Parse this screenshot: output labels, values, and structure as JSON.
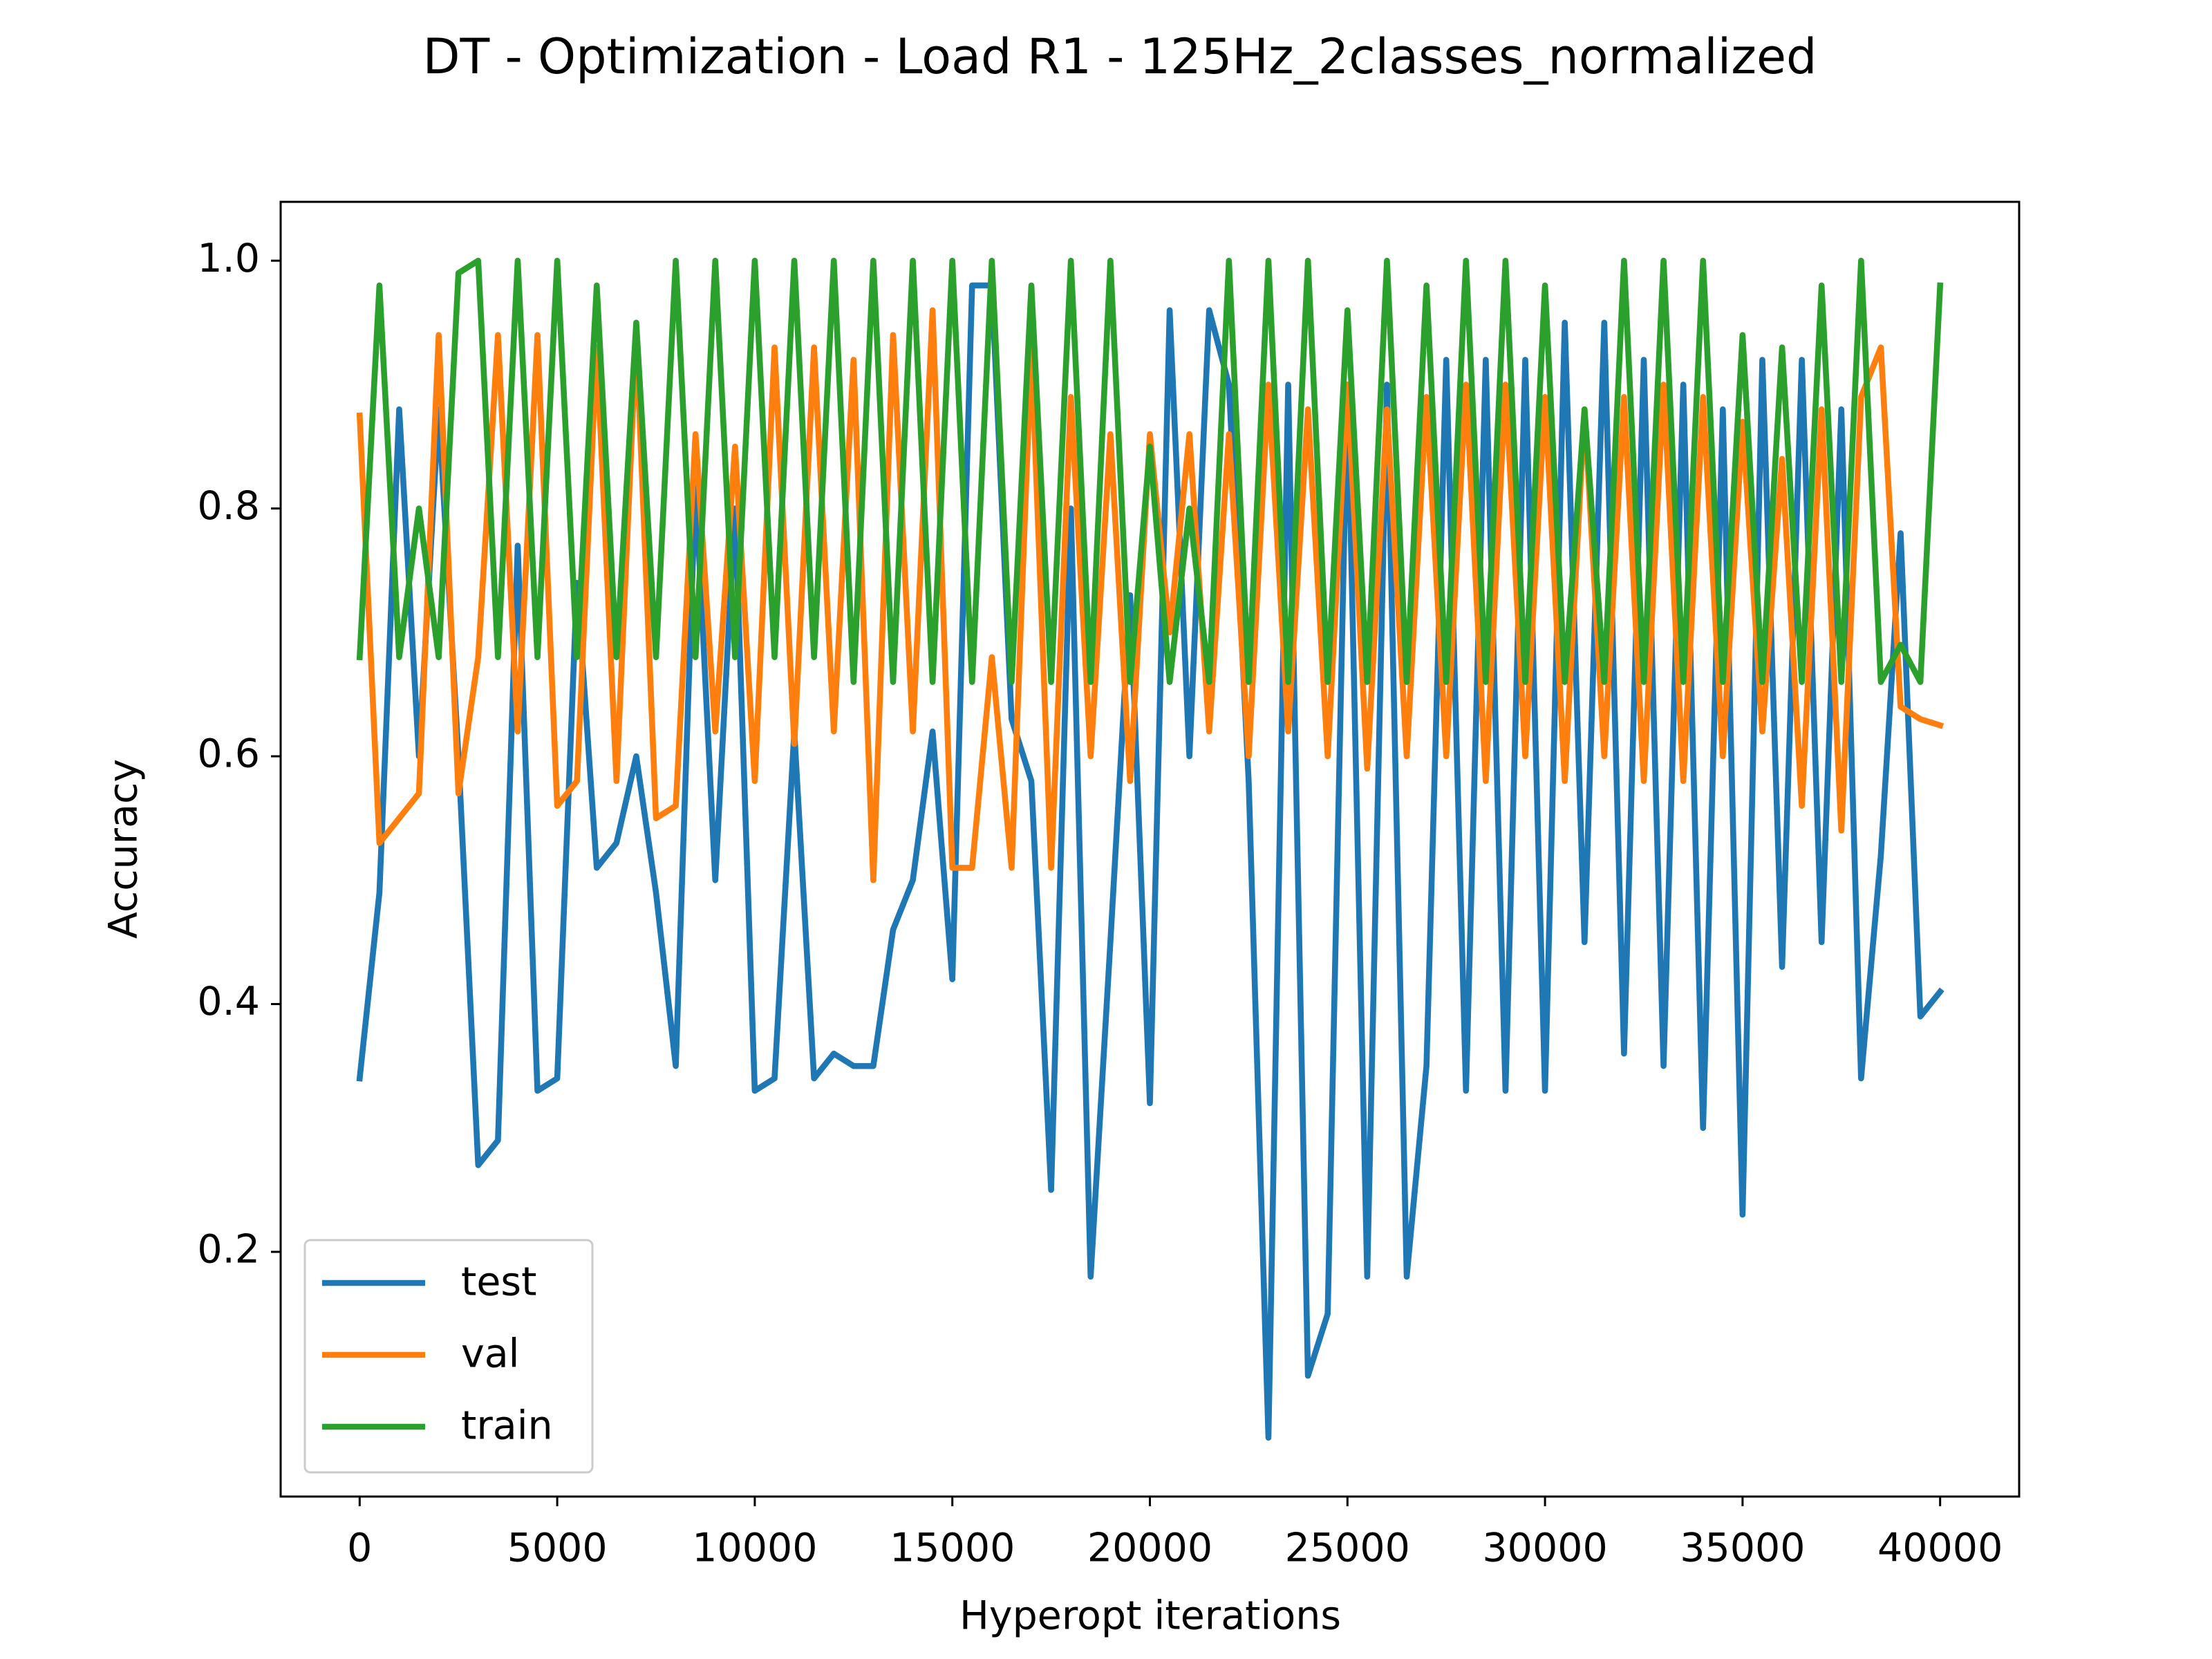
{
  "chart_data": {
    "type": "line",
    "title": "DT - Optimization - Load R1 - 125Hz_2classes_normalized",
    "x_label": "Hyperopt iterations",
    "y_label": "Accuracy",
    "x": [
      0,
      500,
      1000,
      1500,
      2000,
      2500,
      3000,
      3500,
      4000,
      4500,
      5000,
      5500,
      6000,
      6500,
      7000,
      7500,
      8000,
      8500,
      9000,
      9500,
      10000,
      10500,
      11000,
      11500,
      12000,
      12500,
      13000,
      13500,
      14000,
      14500,
      15000,
      15500,
      16000,
      16500,
      17000,
      17500,
      18000,
      18500,
      19000,
      19500,
      20000,
      20500,
      21000,
      21500,
      22000,
      22500,
      23000,
      23500,
      24000,
      24500,
      25000,
      25500,
      26000,
      26500,
      27000,
      27500,
      28000,
      28500,
      29000,
      29500,
      30000,
      30500,
      31000,
      31500,
      32000,
      32500,
      33000,
      33500,
      34000,
      34500,
      35000,
      35500,
      36000,
      36500,
      37000,
      37500,
      38000,
      38500,
      39000,
      39500,
      40000
    ],
    "series": [
      {
        "name": "test",
        "color": "#1f77b4",
        "values": [
          0.34,
          0.49,
          0.88,
          0.6,
          0.88,
          0.6,
          0.27,
          0.29,
          0.77,
          0.33,
          0.34,
          0.74,
          0.51,
          0.53,
          0.6,
          0.49,
          0.35,
          0.82,
          0.5,
          0.8,
          0.33,
          0.34,
          0.62,
          0.34,
          0.36,
          0.35,
          0.35,
          0.46,
          0.5,
          0.62,
          0.42,
          0.98,
          0.98,
          0.63,
          0.58,
          0.25,
          0.8,
          0.18,
          0.45,
          0.73,
          0.32,
          0.96,
          0.6,
          0.96,
          0.9,
          0.58,
          0.05,
          0.9,
          0.1,
          0.15,
          0.9,
          0.18,
          0.9,
          0.18,
          0.35,
          0.92,
          0.33,
          0.92,
          0.33,
          0.92,
          0.33,
          0.95,
          0.45,
          0.95,
          0.36,
          0.92,
          0.35,
          0.9,
          0.3,
          0.88,
          0.23,
          0.92,
          0.43,
          0.92,
          0.45,
          0.88,
          0.34,
          0.52,
          0.78,
          0.39,
          0.41
        ]
      },
      {
        "name": "val",
        "color": "#ff7f0e",
        "values": [
          0.875,
          0.53,
          0.55,
          0.57,
          0.94,
          0.57,
          0.68,
          0.94,
          0.62,
          0.94,
          0.56,
          0.58,
          0.93,
          0.58,
          0.94,
          0.55,
          0.56,
          0.86,
          0.62,
          0.85,
          0.58,
          0.93,
          0.61,
          0.93,
          0.62,
          0.92,
          0.5,
          0.94,
          0.62,
          0.96,
          0.51,
          0.51,
          0.68,
          0.51,
          0.93,
          0.51,
          0.89,
          0.6,
          0.86,
          0.58,
          0.86,
          0.7,
          0.86,
          0.62,
          0.86,
          0.6,
          0.9,
          0.62,
          0.88,
          0.6,
          0.9,
          0.59,
          0.88,
          0.6,
          0.89,
          0.6,
          0.9,
          0.58,
          0.9,
          0.6,
          0.89,
          0.58,
          0.88,
          0.6,
          0.89,
          0.58,
          0.9,
          0.58,
          0.89,
          0.6,
          0.87,
          0.62,
          0.84,
          0.56,
          0.88,
          0.54,
          0.89,
          0.93,
          0.64,
          0.63,
          0.625
        ]
      },
      {
        "name": "train",
        "color": "#2ca02c",
        "values": [
          0.68,
          0.98,
          0.68,
          0.8,
          0.68,
          0.99,
          1.0,
          0.68,
          1.0,
          0.68,
          1.0,
          0.68,
          0.98,
          0.68,
          0.95,
          0.68,
          1.0,
          0.68,
          1.0,
          0.68,
          1.0,
          0.68,
          1.0,
          0.68,
          1.0,
          0.66,
          1.0,
          0.66,
          1.0,
          0.66,
          1.0,
          0.66,
          1.0,
          0.66,
          0.98,
          0.66,
          1.0,
          0.66,
          1.0,
          0.66,
          0.85,
          0.66,
          0.8,
          0.66,
          1.0,
          0.66,
          1.0,
          0.66,
          1.0,
          0.66,
          0.96,
          0.66,
          1.0,
          0.66,
          0.98,
          0.66,
          1.0,
          0.66,
          1.0,
          0.66,
          0.98,
          0.66,
          0.88,
          0.66,
          1.0,
          0.66,
          1.0,
          0.66,
          1.0,
          0.66,
          0.94,
          0.66,
          0.93,
          0.66,
          0.98,
          0.66,
          1.0,
          0.66,
          0.69,
          0.66,
          0.98
        ]
      }
    ],
    "xlim": [
      -2000,
      42000
    ],
    "ylim": [
      0.0025,
      1.0475
    ],
    "xticks": [
      0,
      5000,
      10000,
      15000,
      20000,
      25000,
      30000,
      35000,
      40000
    ],
    "yticks": [
      0.2,
      0.4,
      0.6,
      0.8,
      {
        "value": 1,
        "label": "1.0"
      }
    ],
    "legend": "lower left",
    "grid": false
  }
}
